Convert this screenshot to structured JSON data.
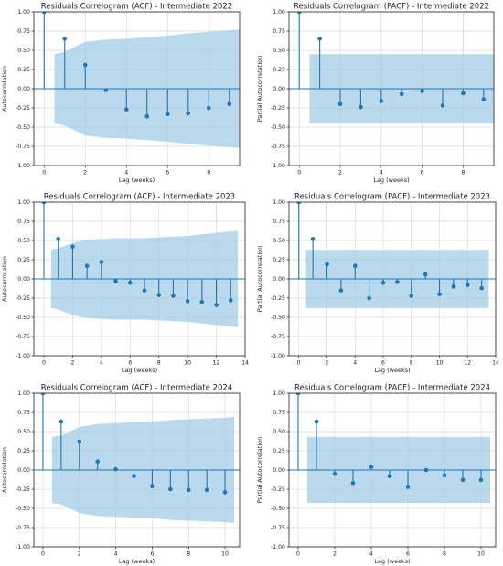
{
  "chart_data": [
    {
      "type": "stem",
      "title": "Residuals Correlogram (ACF) - Intermediate 2022",
      "xlabel": "Lag (weeks)",
      "ylabel": "Autocorrelation",
      "ylim": [
        -1.0,
        1.0
      ],
      "xlim": [
        -0.5,
        9.5
      ],
      "x_ticks": [
        0,
        2,
        4,
        6,
        8
      ],
      "y_ticks": [
        "-1.00",
        "-0.75",
        "-0.50",
        "-0.25",
        "0.00",
        "0.25",
        "0.50",
        "0.75",
        "1.00"
      ],
      "grid": true,
      "lags": [
        0,
        1,
        2,
        3,
        4,
        5,
        6,
        7,
        8,
        9
      ],
      "values": [
        1.0,
        0.65,
        0.31,
        -0.02,
        -0.27,
        -0.36,
        -0.33,
        -0.32,
        -0.25,
        -0.2
      ],
      "confidence": {
        "x": [
          0.5,
          1,
          2,
          3,
          4,
          5,
          6,
          7,
          8,
          9,
          9.5
        ],
        "upper": [
          0.45,
          0.48,
          0.61,
          0.64,
          0.65,
          0.67,
          0.69,
          0.72,
          0.74,
          0.76,
          0.77
        ]
      }
    },
    {
      "type": "stem",
      "title": "Residuals Correlogram (PACF) - Intermediate 2022",
      "xlabel": "Lag (weeks)",
      "ylabel": "Partial Autocorrelation",
      "ylim": [
        -1.0,
        1.0
      ],
      "xlim": [
        -0.5,
        9.5
      ],
      "x_ticks": [
        0,
        2,
        4,
        6,
        8
      ],
      "y_ticks": [
        "-1.00",
        "-0.75",
        "-0.50",
        "-0.25",
        "0.00",
        "0.25",
        "0.50",
        "0.75",
        "1.00"
      ],
      "grid": true,
      "lags": [
        0,
        1,
        2,
        3,
        4,
        5,
        6,
        7,
        8,
        9
      ],
      "values": [
        1.0,
        0.65,
        -0.2,
        -0.24,
        -0.16,
        -0.07,
        -0.03,
        -0.22,
        -0.06,
        -0.14
      ],
      "confidence": {
        "x": [
          0.5,
          9.5
        ],
        "upper": [
          0.45,
          0.45
        ]
      }
    },
    {
      "type": "stem",
      "title": "Residuals Correlogram (ACF) - Intermediate 2023",
      "xlabel": "Lag (weeks)",
      "ylabel": "Autocorrelation",
      "ylim": [
        -1.0,
        1.0
      ],
      "xlim": [
        -0.7,
        14.0
      ],
      "x_ticks": [
        0,
        2,
        4,
        6,
        8,
        10,
        12,
        14
      ],
      "y_ticks": [
        "-1.00",
        "-0.75",
        "-0.50",
        "-0.25",
        "0.00",
        "0.25",
        "0.50",
        "0.75",
        "1.00"
      ],
      "grid": true,
      "lags": [
        0,
        1,
        2,
        3,
        4,
        5,
        6,
        7,
        8,
        9,
        10,
        11,
        12,
        13
      ],
      "values": [
        1.0,
        0.52,
        0.42,
        0.17,
        0.22,
        -0.03,
        -0.05,
        -0.15,
        -0.21,
        -0.22,
        -0.29,
        -0.3,
        -0.34,
        -0.28
      ],
      "confidence": {
        "x": [
          0.5,
          1,
          2,
          3,
          4,
          5,
          6,
          7,
          8,
          9,
          10,
          11,
          12,
          13,
          13.5
        ],
        "upper": [
          0.38,
          0.4,
          0.47,
          0.51,
          0.52,
          0.53,
          0.53,
          0.53,
          0.54,
          0.55,
          0.56,
          0.58,
          0.6,
          0.62,
          0.63
        ]
      }
    },
    {
      "type": "stem",
      "title": "Residuals Correlogram (PACF) - Intermediate 2023",
      "xlabel": "Lag (weeks)",
      "ylabel": "Partial Autocorrelation",
      "ylim": [
        -1.0,
        1.0
      ],
      "xlim": [
        -0.7,
        14.0
      ],
      "x_ticks": [
        0,
        2,
        4,
        6,
        8,
        10,
        12,
        14
      ],
      "y_ticks": [
        "-1.00",
        "-0.75",
        "-0.50",
        "-0.25",
        "0.00",
        "0.25",
        "0.50",
        "0.75",
        "1.00"
      ],
      "grid": true,
      "lags": [
        0,
        1,
        2,
        3,
        4,
        5,
        6,
        7,
        8,
        9,
        10,
        11,
        12,
        13
      ],
      "values": [
        1.0,
        0.52,
        0.19,
        -0.15,
        0.17,
        -0.25,
        -0.05,
        -0.04,
        -0.22,
        0.06,
        -0.2,
        -0.1,
        -0.08,
        -0.12
      ],
      "confidence": {
        "x": [
          0.5,
          13.5
        ],
        "upper": [
          0.38,
          0.38
        ]
      }
    },
    {
      "type": "stem",
      "title": "Residuals Correlogram (ACF) - Intermediate 2024",
      "xlabel": "Lag (weeks)",
      "ylabel": "Autocorrelation",
      "ylim": [
        -1.0,
        1.0
      ],
      "xlim": [
        -0.5,
        10.8
      ],
      "x_ticks": [
        0,
        2,
        4,
        6,
        8,
        10
      ],
      "y_ticks": [
        "-1.00",
        "-0.75",
        "-0.50",
        "-0.25",
        "0.00",
        "0.25",
        "0.50",
        "0.75",
        "1.00"
      ],
      "grid": true,
      "lags": [
        0,
        1,
        2,
        3,
        4,
        5,
        6,
        7,
        8,
        9,
        10
      ],
      "values": [
        1.0,
        0.63,
        0.37,
        0.11,
        0.01,
        -0.08,
        -0.21,
        -0.25,
        -0.26,
        -0.26,
        -0.29
      ],
      "confidence": {
        "x": [
          0.5,
          1,
          2,
          3,
          4,
          5,
          6,
          7,
          8,
          9,
          10,
          10.5
        ],
        "upper": [
          0.43,
          0.45,
          0.56,
          0.6,
          0.61,
          0.62,
          0.63,
          0.65,
          0.66,
          0.67,
          0.68,
          0.69
        ]
      }
    },
    {
      "type": "stem",
      "title": "Residuals Correlogram (PACF) - Intermediate 2024",
      "xlabel": "Lag (weeks)",
      "ylabel": "Partial Autocorrelation",
      "ylim": [
        -1.0,
        1.0
      ],
      "xlim": [
        -0.5,
        10.8
      ],
      "x_ticks": [
        0,
        2,
        4,
        6,
        8,
        10
      ],
      "y_ticks": [
        "-1.00",
        "-0.75",
        "-0.50",
        "-0.25",
        "0.00",
        "0.25",
        "0.50",
        "0.75",
        "1.00"
      ],
      "grid": true,
      "lags": [
        0,
        1,
        2,
        3,
        4,
        5,
        6,
        7,
        8,
        9,
        10
      ],
      "values": [
        1.0,
        0.63,
        -0.05,
        -0.17,
        0.04,
        -0.08,
        -0.22,
        0.0,
        -0.07,
        -0.13,
        -0.13
      ],
      "confidence": {
        "x": [
          0.5,
          10.5
        ],
        "upper": [
          0.43,
          0.43
        ]
      }
    }
  ],
  "colors": {
    "stem": "#1f77b4",
    "band": "#9fcbe6",
    "grid": "#d9d9d9"
  }
}
